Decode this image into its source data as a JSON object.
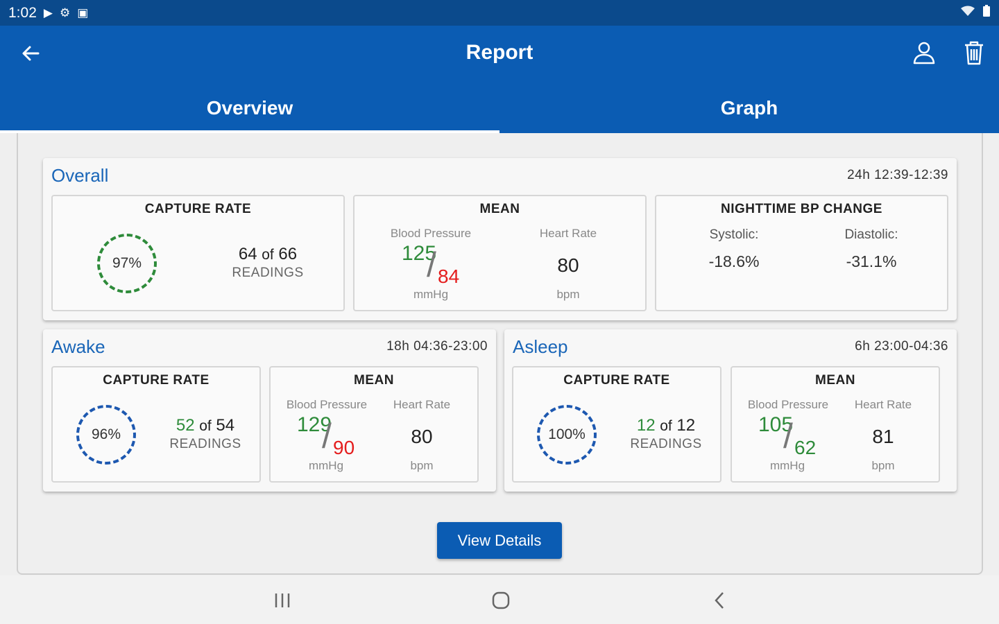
{
  "status": {
    "time": "1:02",
    "icons": [
      "play-icon",
      "gear-icon",
      "clipboard-icon",
      "wifi-icon",
      "battery-icon"
    ]
  },
  "appbar": {
    "title": "Report",
    "back_icon": "back-arrow-icon",
    "actions": [
      "person-icon",
      "trash-icon"
    ]
  },
  "tabs": [
    {
      "label": "Overview",
      "active": true
    },
    {
      "label": "Graph",
      "active": false
    }
  ],
  "overall": {
    "title": "Overall",
    "time": "24h  12:39-12:39",
    "capture": {
      "head": "CAPTURE RATE",
      "percent": "97%",
      "count": "64",
      "of": "of",
      "total": "66",
      "label": "READINGS"
    },
    "mean": {
      "head": "MEAN",
      "bp_label": "Blood Pressure",
      "hr_label": "Heart Rate",
      "systolic": "125",
      "diastolic": "84",
      "bp_unit": "mmHg",
      "hr": "80",
      "hr_unit": "bpm"
    },
    "night": {
      "head": "NIGHTTIME BP CHANGE",
      "sys_label": "Systolic:",
      "dia_label": "Diastolic:",
      "sys_val": "-18.6%",
      "dia_val": "-31.1%"
    }
  },
  "awake": {
    "title": "Awake",
    "time": "18h  04:36-23:00",
    "capture": {
      "head": "CAPTURE RATE",
      "percent": "96%",
      "count": "52",
      "of": "of",
      "total": "54",
      "label": "READINGS"
    },
    "mean": {
      "head": "MEAN",
      "bp_label": "Blood Pressure",
      "hr_label": "Heart Rate",
      "systolic": "129",
      "diastolic": "90",
      "bp_unit": "mmHg",
      "hr": "80",
      "hr_unit": "bpm"
    }
  },
  "asleep": {
    "title": "Asleep",
    "time": "6h  23:00-04:36",
    "capture": {
      "head": "CAPTURE RATE",
      "percent": "100%",
      "count": "12",
      "of": "of",
      "total": "12",
      "label": "READINGS"
    },
    "mean": {
      "head": "MEAN",
      "bp_label": "Blood Pressure",
      "hr_label": "Heart Rate",
      "systolic": "105",
      "diastolic": "62",
      "bp_unit": "mmHg",
      "hr": "81",
      "hr_unit": "bpm"
    }
  },
  "button": {
    "label": "View Details"
  },
  "navbar": {
    "icons": [
      "recents-icon",
      "home-icon",
      "back-icon"
    ]
  },
  "colors": {
    "primary": "#0b5cb3",
    "status": "#0b4a8c",
    "green": "#2e8b3a",
    "red": "#e41d1d",
    "blue_ring": "#1d58b0"
  }
}
